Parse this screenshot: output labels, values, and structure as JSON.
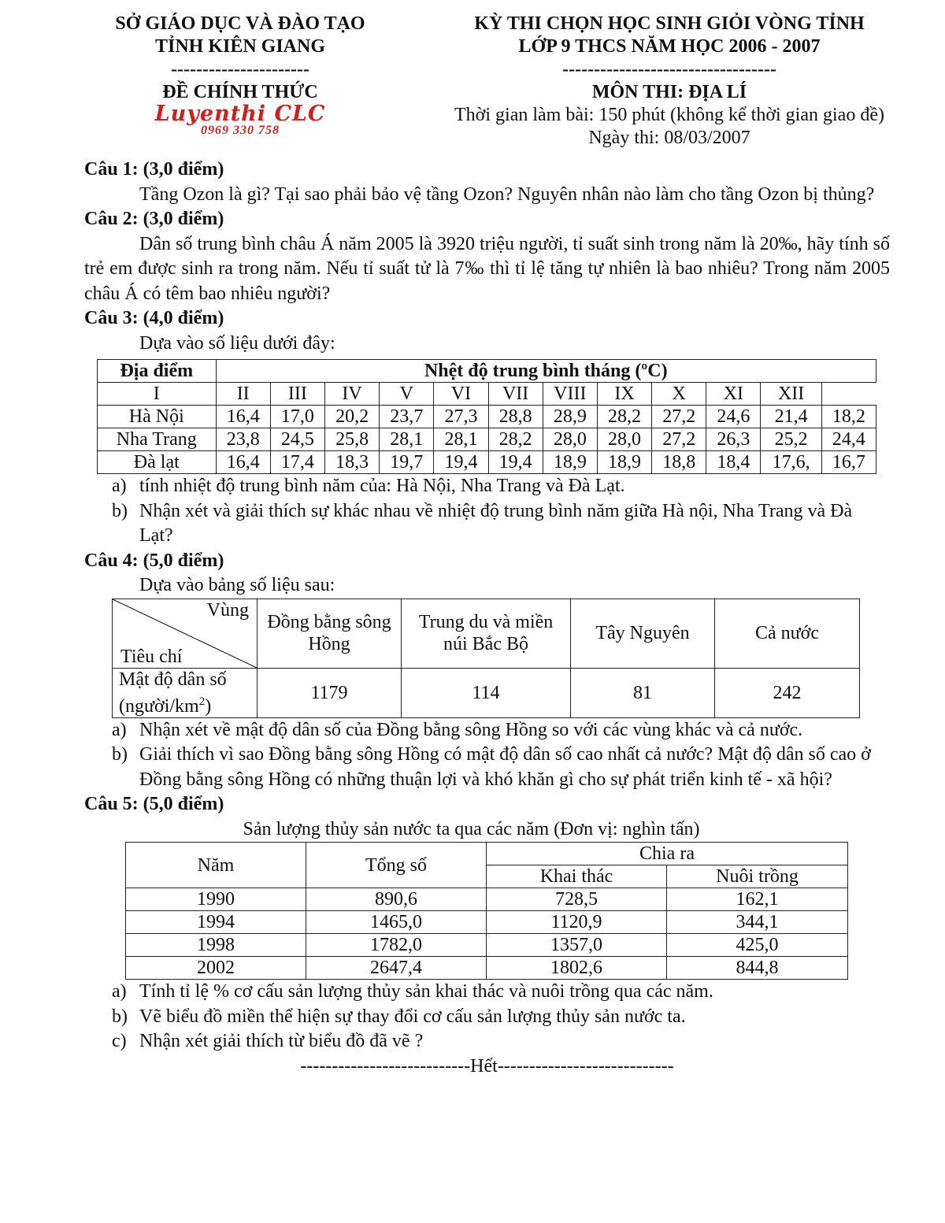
{
  "header": {
    "left": {
      "line1": "SỞ GIÁO DỤC VÀ ĐÀO TẠO",
      "line2": "TỈNH KIÊN GIANG",
      "divider": "----------------------",
      "status": "ĐỀ CHÍNH THỨC",
      "logo_text": "Luyenthi CLC",
      "logo_phone": "0969 330 758"
    },
    "right": {
      "line1": "KỲ THI CHỌN HỌC SINH GIỎI VÒNG TỈNH",
      "line2": "LỚP 9 THCS NĂM HỌC 2006 - 2007",
      "divider": "----------------------------------",
      "subject": "MÔN THI: ĐỊA LÍ",
      "time": "Thời gian làm bài: 150 phút (không kể thời gian giao đề)",
      "date": "Ngày thi: 08/03/2007"
    },
    "brand_color": "#d0201c"
  },
  "q1": {
    "title": "Câu 1: (3,0 điểm)",
    "text": "Tầng Ozon là gì? Tại sao phải bảo vệ tầng Ozon? Nguyên nhân nào làm cho tầng Ozon bị thủng?"
  },
  "q2": {
    "title": "Câu 2: (3,0 điểm)",
    "text": "Dân số trung bình châu Á năm 2005 là 3920 triệu người, tỉ suất sinh trong năm là 20‰, hãy tính số trẻ em được sinh ra trong năm. Nếu tỉ suất tử là 7‰ thì tỉ lệ tăng tự nhiên là bao nhiêu? Trong năm 2005 châu Á có têm bao nhiêu người?"
  },
  "q3": {
    "title": "Câu 3: (4,0 điểm)",
    "intro": "Dựa vào số liệu dưới đây:",
    "table": {
      "place_header": "Địa điểm",
      "group_header": "Nhệt độ trung bình tháng (ºC)",
      "months": [
        "I",
        "II",
        "III",
        "IV",
        "V",
        "VI",
        "VII",
        "VIII",
        "IX",
        "X",
        "XI",
        "XII"
      ],
      "rows": [
        {
          "place": "Hà Nội",
          "values": [
            "16,4",
            "17,0",
            "20,2",
            "23,7",
            "27,3",
            "28,8",
            "28,9",
            "28,2",
            "27,2",
            "24,6",
            "21,4",
            "18,2"
          ]
        },
        {
          "place": "Nha Trang",
          "values": [
            "23,8",
            "24,5",
            "25,8",
            "28,1",
            "28,1",
            "28,2",
            "28,0",
            "28,0",
            "27,2",
            "26,3",
            "25,2",
            "24,4"
          ]
        },
        {
          "place": "Đà lạt",
          "values": [
            "16,4",
            "17,4",
            "18,3",
            "19,7",
            "19,4",
            "19,4",
            "18,9",
            "18,9",
            "18,8",
            "18,4",
            "17,6,",
            "16,7"
          ]
        }
      ]
    },
    "items": [
      {
        "label": "a)",
        "text": "tính nhiệt độ trung bình năm của: Hà Nội, Nha Trang và Đà Lạt."
      },
      {
        "label": "b)",
        "text": "Nhận xét và giải thích sự khác nhau về nhiệt độ trung bình năm giữa Hà nội, Nha Trang và Đà Lạt?"
      }
    ]
  },
  "q4": {
    "title": "Câu 4: (5,0 điểm)",
    "intro": "Dựa vào bảng số liệu sau:",
    "table": {
      "corner_top": "Vùng",
      "corner_bottom": "Tiêu chí",
      "cols": [
        "Đồng bằng sông Hồng",
        "Trung du và miền núi Bắc Bộ",
        "Tây Nguyên",
        "Cả nước"
      ],
      "row_label": "Mật độ dân số (người/km",
      "row_label_sup": "2",
      "row_label_end": ")",
      "values": [
        "1179",
        "114",
        "81",
        "242"
      ]
    },
    "items": [
      {
        "label": "a)",
        "text": "Nhận xét về mật độ dân số  của Đồng bằng sông Hồng so với các vùng khác và cả nước."
      },
      {
        "label": "b)",
        "text": "Giải thích vì sao Đồng bằng sông Hồng có mật độ dân số cao nhất cả nước? Mật độ dân số cao ở Đồng bằng sông Hồng có những thuận lợi và khó khăn gì cho sự phát triển kinh tế - xã hội?"
      }
    ]
  },
  "q5": {
    "title": "Câu 5: (5,0 điểm)",
    "caption": "Sản lượng thủy sản nước ta qua các năm (Đơn vị: nghìn tấn)",
    "table": {
      "h_year": "Năm",
      "h_total": "Tổng số",
      "h_group": "Chia ra",
      "h_catch": "Khai thác",
      "h_farm": "Nuôi trồng",
      "rows": [
        [
          "1990",
          "890,6",
          "728,5",
          "162,1"
        ],
        [
          "1994",
          "1465,0",
          "1120,9",
          "344,1"
        ],
        [
          "1998",
          "1782,0",
          "1357,0",
          "425,0"
        ],
        [
          "2002",
          "2647,4",
          "1802,6",
          "844,8"
        ]
      ]
    },
    "items": [
      {
        "label": "a)",
        "text": "Tính tỉ lệ % cơ cấu sản lượng thủy sản khai thác và nuôi trồng qua các năm."
      },
      {
        "label": "b)",
        "text": "Vẽ biểu đồ miền thể hiện sự thay đổi cơ cấu sản lượng thủy sản nước ta."
      },
      {
        "label": "c)",
        "text": "Nhận xét giải thích từ biểu đồ đã vẽ ?"
      }
    ]
  },
  "footer": {
    "end": "---------------------------Hết----------------------------"
  }
}
